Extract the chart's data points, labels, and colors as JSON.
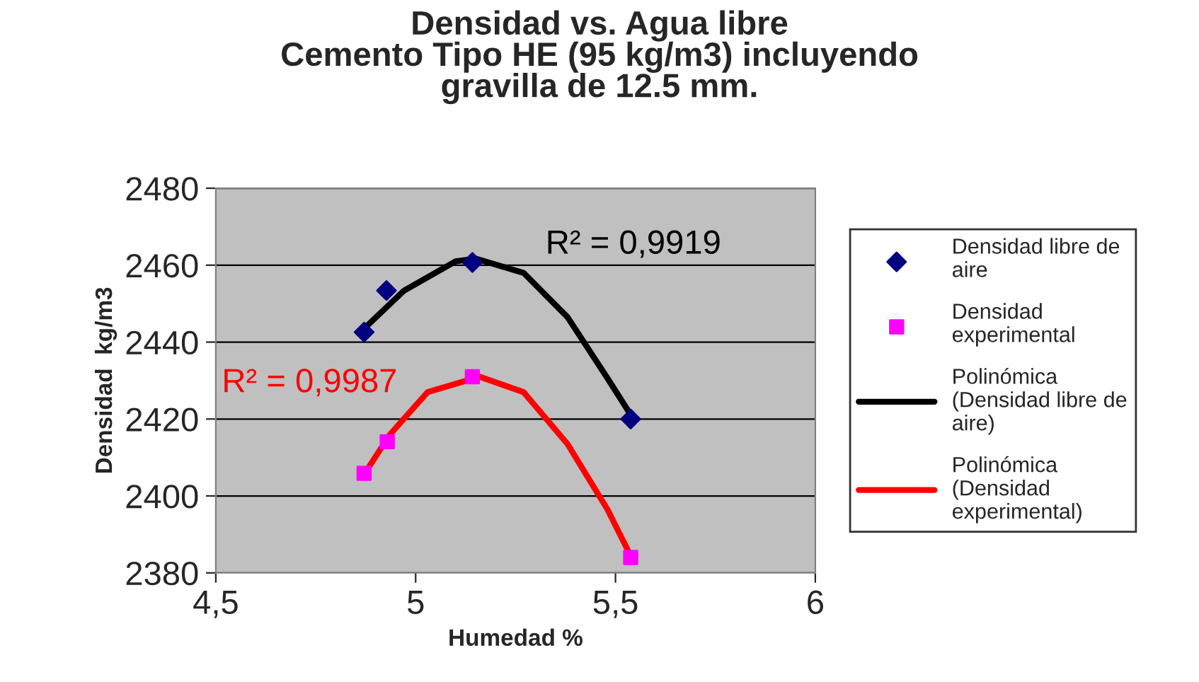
{
  "chart_data": {
    "type": "scatter",
    "title": "Densidad vs. Agua libre\nCemento Tipo HE (95 kg/m3) incluyendo\ngravilla de 12.5 mm.",
    "xlabel": "Humedad %",
    "ylabel": "Densidad  kg/m3",
    "xlim": [
      4.5,
      6
    ],
    "xticks": [
      {
        "value": 4.5,
        "label": "4,5"
      },
      5,
      {
        "value": 5.5,
        "label": "5,5"
      },
      6
    ],
    "ylim": [
      2380,
      2480
    ],
    "yticks": [
      2380,
      2400,
      2420,
      2440,
      2460,
      2480
    ],
    "grid": "y",
    "legend": "right",
    "series": [
      {
        "name": "Densidad libre de aire",
        "marker": "diamond",
        "color": "#000080",
        "x": [
          4.871,
          4.927,
          5.142,
          5.538
        ],
        "values": [
          2442.6,
          2453.4,
          2460.7,
          2420
        ]
      },
      {
        "name": "Densidad experimental",
        "marker": "square",
        "color": "#ff00ff",
        "x": [
          4.871,
          4.929,
          5.142,
          5.538
        ],
        "values": [
          2405.9,
          2414.1,
          2431,
          2384
        ]
      },
      {
        "name": "Polinómica (Densidad libre de aire)",
        "type": "line",
        "marker": "none",
        "color": "#000000",
        "x": [
          4.871,
          4.97,
          5.1,
          5.15,
          5.27,
          5.38,
          5.48,
          5.54
        ],
        "values": [
          2443.5,
          2453.3,
          2461,
          2461.7,
          2458,
          2446.5,
          2430.6,
          2420.8
        ]
      },
      {
        "name": "Polinómica (Densidad experimental)",
        "type": "line",
        "marker": "none",
        "color": "#ff0000",
        "x": [
          4.871,
          4.936,
          5.03,
          5.16,
          5.27,
          5.38,
          5.48,
          5.54
        ],
        "values": [
          2405.6,
          2416,
          2427,
          2431,
          2427,
          2413.5,
          2396.5,
          2384
        ]
      }
    ],
    "annotations": [
      "R² = 0,9919",
      "R² = 0,9987"
    ]
  }
}
